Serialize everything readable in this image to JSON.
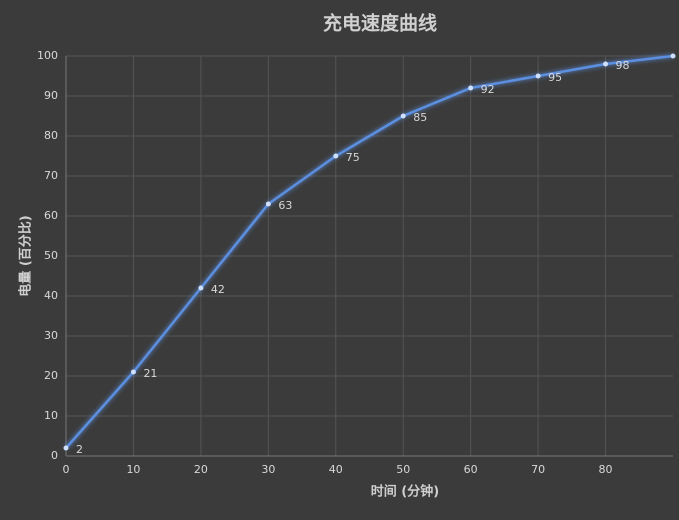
{
  "chart_data": {
    "type": "line",
    "title": "充电速度曲线",
    "x_label": "时间 (分钟)",
    "y_label": "电量 (百分比)",
    "x": [
      0,
      10,
      20,
      30,
      40,
      50,
      60,
      70,
      80,
      90
    ],
    "series": [
      {
        "name": "电量",
        "color": "#5b8fe0",
        "values": [
          2,
          21,
          42,
          63,
          75,
          85,
          92,
          95,
          98,
          100
        ]
      }
    ],
    "xlim": [
      0,
      90
    ],
    "xticks": [
      0,
      10,
      20,
      30,
      40,
      50,
      60,
      70,
      80
    ],
    "ylim": [
      0,
      100
    ],
    "yticks": [
      0,
      10,
      20,
      30,
      40,
      50,
      60,
      70,
      80,
      90,
      100
    ],
    "grid": true
  }
}
